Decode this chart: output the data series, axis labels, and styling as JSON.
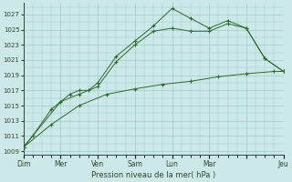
{
  "background_color": "#cce8e8",
  "grid_color": "#99cccc",
  "line_color": "#2d6a2d",
  "marker_color": "#2d6a2d",
  "ylabel_ticks": [
    1009,
    1011,
    1013,
    1015,
    1017,
    1019,
    1021,
    1023,
    1025,
    1027
  ],
  "xlabel": "Pression niveau de la mer( hPa )",
  "x_tick_labels": [
    "Dim",
    "Mer",
    "Ven",
    "Sam",
    "Lun",
    "Mar",
    "",
    "Jeu"
  ],
  "x_tick_positions": [
    0,
    2,
    4,
    6,
    8,
    10,
    12,
    14
  ],
  "series1": {
    "x": [
      0,
      0.5,
      1.5,
      2,
      2.5,
      3,
      3.5,
      4,
      5,
      6,
      7,
      8,
      9,
      10,
      11,
      12,
      13,
      14
    ],
    "y": [
      1009.5,
      1011,
      1014.5,
      1015.5,
      1016.5,
      1017.0,
      1017.0,
      1018.0,
      1021.5,
      1023.5,
      1025.5,
      1027.8,
      1026.5,
      1025.2,
      1026.2,
      1025.2,
      1021.2,
      1019.5
    ]
  },
  "series2": {
    "x": [
      0,
      2,
      3,
      4,
      5,
      6,
      7,
      8,
      9,
      10,
      11,
      12,
      13,
      14
    ],
    "y": [
      1009.5,
      1015.5,
      1016.5,
      1017.5,
      1020.8,
      1023.0,
      1024.8,
      1025.2,
      1024.8,
      1024.8,
      1025.8,
      1025.2,
      1021.2,
      1019.5
    ]
  },
  "series3": {
    "x": [
      0,
      1.5,
      3,
      4.5,
      6,
      7.5,
      9,
      10.5,
      12,
      13.5,
      14
    ],
    "y": [
      1009.5,
      1012.5,
      1015.0,
      1016.5,
      1017.2,
      1017.8,
      1018.2,
      1018.8,
      1019.2,
      1019.5,
      1019.5
    ]
  },
  "ylim": [
    1008.5,
    1028.5
  ],
  "xlim": [
    0,
    14.0
  ],
  "figsize": [
    3.2,
    2.0
  ],
  "dpi": 100
}
